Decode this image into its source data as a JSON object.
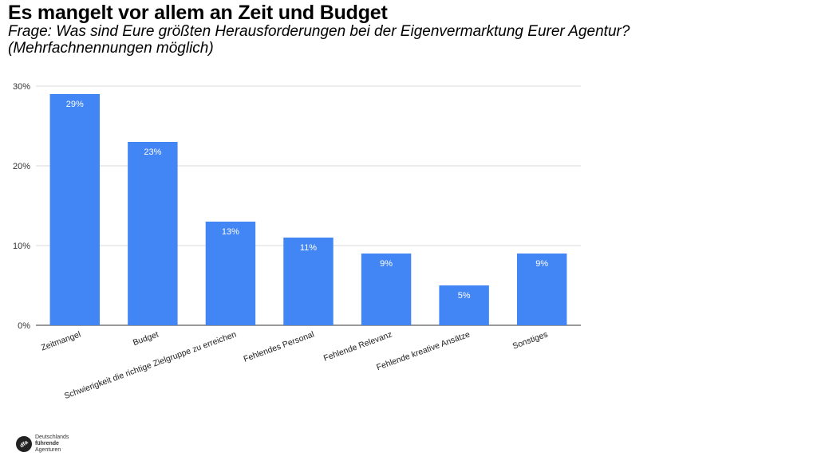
{
  "slide": {
    "title": "Es mangelt vor allem an Zeit und Budget",
    "subtitle_line1": "Frage: Was sind Eure größten Herausforderungen bei der Eigenvermarktung Eurer Agentur?",
    "subtitle_line2": "(Mehrfachnennungen möglich)"
  },
  "chart_data": {
    "type": "bar",
    "categories": [
      "Zeitmangel",
      "Budget",
      "Schwierigkeit die richtige Zielgruppe zu erreichen",
      "Fehlendes Personal",
      "Fehlende Relevanz",
      "Fehlende kreative Ansätze",
      "Sonstiges"
    ],
    "values": [
      29,
      23,
      13,
      11,
      9,
      5,
      9
    ],
    "data_labels": [
      "29%",
      "23%",
      "13%",
      "11%",
      "9%",
      "5%",
      "9%"
    ],
    "yticks": [
      0,
      10,
      20,
      30
    ],
    "ytick_labels": [
      "0%",
      "10%",
      "20%",
      "30%"
    ],
    "ylim": [
      0,
      30
    ],
    "grid": true,
    "bar_color": "#4285f4",
    "legend": "none"
  },
  "logo": {
    "mark": "dfa",
    "line1": "Deutschlands",
    "line2": "führende",
    "line3": "Agenturen"
  }
}
